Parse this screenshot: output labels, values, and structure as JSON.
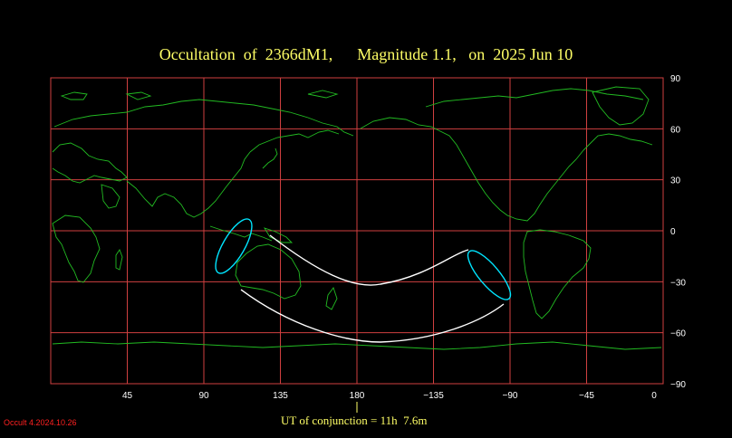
{
  "title": {
    "object_label": "Occultation  of  2366dM1,",
    "magnitude_label": "Magnitude 1.1,",
    "date_label": "on  2025 Jun 10"
  },
  "map": {
    "projection": "equirectangular",
    "center_longitude": 180,
    "x_ticks": [
      "45",
      "90",
      "135",
      "180",
      "−135",
      "−90",
      "−45",
      "0"
    ],
    "y_ticks": [
      "90",
      "60",
      "30",
      "0",
      "−30",
      "−60",
      "−90"
    ],
    "grid_color": "#d04040",
    "coast_color": "#22bb22",
    "path_color": "#ffffff",
    "limit_color": "#00e5ff"
  },
  "footer": {
    "conjunction_label": "UT of conjunction = 11h  7.6m",
    "version_label": "Occult 4.2024.10.26"
  }
}
